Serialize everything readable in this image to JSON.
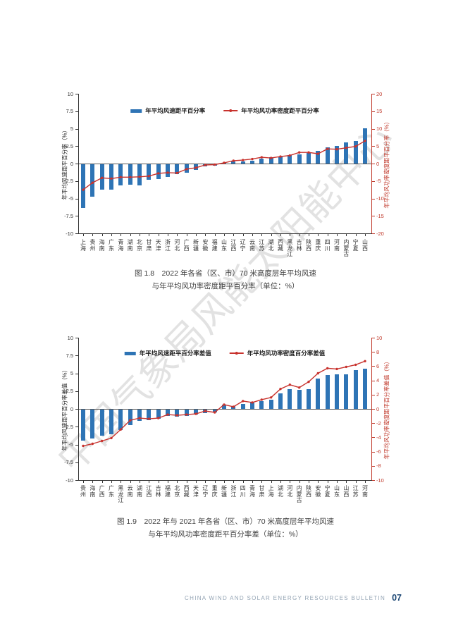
{
  "page": {
    "watermark": "中国气象局风能太阳能中心",
    "footer": {
      "bulletin_title": "CHINA WIND AND SOLAR ENERGY RESOURCES BULLETIN",
      "page_number": "07"
    }
  },
  "colors": {
    "bar_blue": "#2e74b5",
    "line_red": "#c8322d",
    "right_axis_red": "#c0392b",
    "axis_black": "#333333",
    "zero_line": "#595959",
    "caption_gray": "#404040",
    "footer_gray": "#94a4b4",
    "page_number_blue": "#1d4875",
    "watermark_gray": "#bdbdbd"
  },
  "chart_data": [
    {
      "type": "bar",
      "caption_line1": "图 1.8　2022 年各省（区、市）70 米高度层年平均风速",
      "caption_line2": "与年平均风功率密度距平百分率（单位：%）",
      "categories": [
        "上海",
        "贵州",
        "海南",
        "广东",
        "青海",
        "湖南",
        "北京",
        "甘肃",
        "天津",
        "浙江",
        "河北",
        "广西",
        "新疆",
        "安徽",
        "福建",
        "山东",
        "江西",
        "辽宁",
        "云南",
        "江苏",
        "湖北",
        "西藏",
        "黑龙江",
        "吉林",
        "陕西",
        "重庆",
        "四川",
        "河南",
        "内蒙古",
        "宁夏",
        "山西"
      ],
      "series": [
        {
          "name": "年平均风速距平百分率",
          "type": "bar",
          "axis": "left",
          "values": [
            -6.3,
            -4.6,
            -3.6,
            -3.6,
            -3.0,
            -2.9,
            -3.0,
            -2.2,
            -2.1,
            -1.8,
            -1.4,
            -1.2,
            -0.8,
            -0.3,
            -0.2,
            0.1,
            0.3,
            0.35,
            0.4,
            0.7,
            0.9,
            1.0,
            1.2,
            1.3,
            1.5,
            1.8,
            2.3,
            2.5,
            3.0,
            3.2,
            5.1
          ]
        },
        {
          "name": "年平均风功率密度距平百分率",
          "type": "line",
          "axis": "right",
          "values": [
            -7.5,
            -5.5,
            -4.1,
            -4.3,
            -3.9,
            -3.9,
            -3.8,
            -3.6,
            -2.8,
            -2.6,
            -2.7,
            -1.6,
            -1.2,
            -0.4,
            -0.3,
            0.2,
            0.8,
            1.0,
            1.3,
            1.8,
            1.6,
            2.0,
            2.3,
            3.2,
            3.2,
            2.8,
            4.2,
            4.1,
            4.5,
            4.9,
            6.5
          ]
        }
      ],
      "left_axis": {
        "label": "年平均风速距平百分率（%）",
        "min": -10,
        "max": 10,
        "ticks": [
          10,
          7.5,
          5,
          2.5,
          0,
          -2.5,
          -5,
          -7.5,
          -10
        ]
      },
      "right_axis": {
        "label": "年平均风功率密度距平百分率（%）",
        "min": -20,
        "max": 20,
        "ticks": [
          20,
          15,
          10,
          5,
          0,
          -5,
          -10,
          -15,
          -20
        ]
      },
      "grid": false,
      "legend_position": "top-center"
    },
    {
      "type": "bar",
      "caption_line1": "图 1.9　2022 年与 2021 年各省（区、市）70 米高度层年平均风速",
      "caption_line2": "与年平均风功率密度距平百分率差（单位：%）",
      "categories": [
        "贵州",
        "海南",
        "广西",
        "广东",
        "黑龙江",
        "云南",
        "湖南",
        "江西",
        "吉林",
        "福建",
        "北京",
        "西藏",
        "天津",
        "辽宁",
        "重庆",
        "新疆",
        "浙江",
        "四川",
        "青海",
        "甘肃",
        "上海",
        "湖北",
        "河北",
        "内蒙古",
        "陕西",
        "安徽",
        "宁夏",
        "山东",
        "山西",
        "江苏",
        "河南"
      ],
      "series": [
        {
          "name": "年平均风速距平百分率差值",
          "type": "bar",
          "axis": "left",
          "values": [
            -4.4,
            -4.1,
            -3.7,
            -3.5,
            -2.9,
            -2.2,
            -1.6,
            -1.5,
            -1.3,
            -0.9,
            -1.0,
            -0.9,
            -0.7,
            -0.5,
            -0.4,
            0.55,
            0.4,
            0.65,
            0.85,
            1.1,
            1.3,
            2.2,
            2.75,
            2.7,
            2.8,
            4.25,
            4.75,
            4.85,
            4.9,
            5.4,
            5.6
          ]
        },
        {
          "name": "年平均风功率密度百分率差值",
          "type": "line",
          "axis": "right",
          "values": [
            -5.2,
            -4.9,
            -4.5,
            -4.1,
            -2.9,
            -1.6,
            -1.3,
            -1.4,
            -1.3,
            -0.8,
            -0.9,
            -0.8,
            -0.7,
            -0.3,
            -0.5,
            0.6,
            0.3,
            1.1,
            0.9,
            1.3,
            1.6,
            2.8,
            3.4,
            3.0,
            3.8,
            5.0,
            5.7,
            5.6,
            5.9,
            6.2,
            6.7
          ]
        }
      ],
      "left_axis": {
        "label": "年平均风速距平百分率差值（%）",
        "min": -10,
        "max": 10,
        "ticks": [
          10,
          7.5,
          5,
          2.5,
          0,
          -2.5,
          -5,
          -7.5,
          -10
        ]
      },
      "right_axis": {
        "label": "年平均风功率密度距平百分率差值（%）",
        "min": -10,
        "max": 10,
        "ticks": [
          10,
          8,
          6,
          4,
          2,
          0,
          -2,
          -4,
          -6,
          -8,
          -10
        ]
      },
      "grid": false,
      "legend_position": "top-center"
    }
  ]
}
